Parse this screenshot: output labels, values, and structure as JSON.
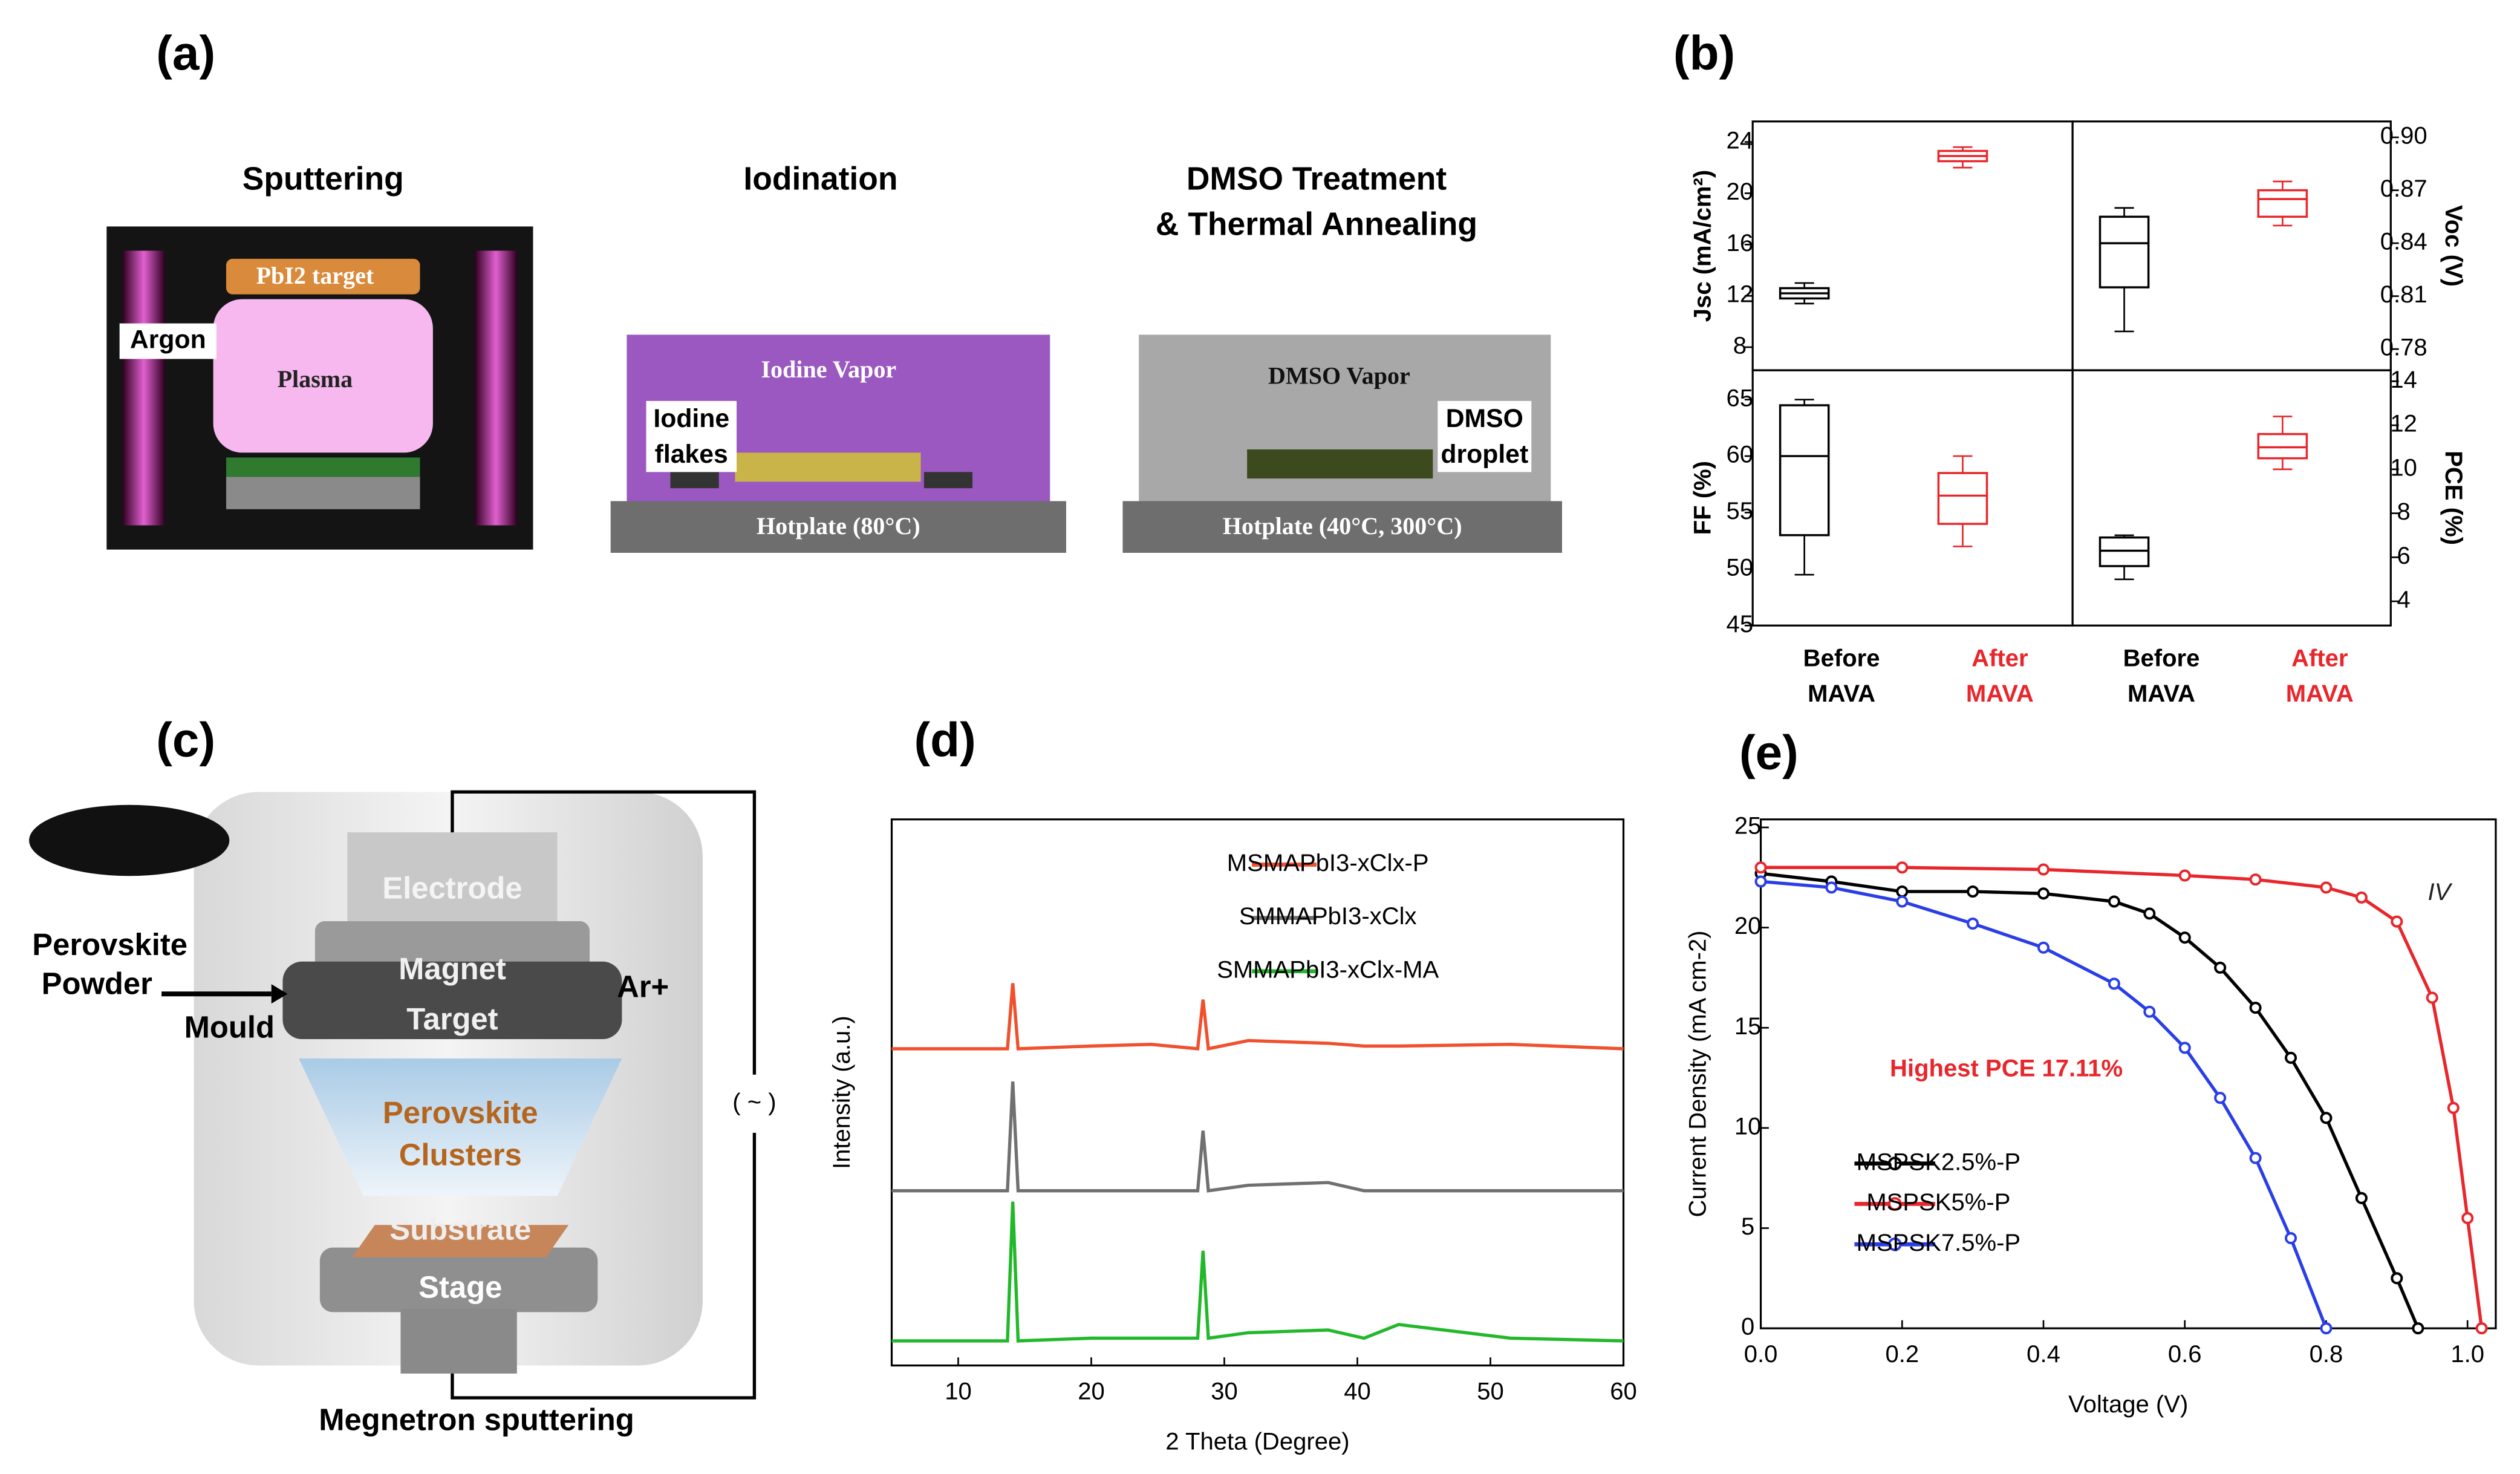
{
  "panel_labels": [
    "(a)",
    "(b)",
    "(c)",
    "(d)",
    "(e)"
  ],
  "panel_a": {
    "titles": [
      "Sputtering",
      "Iodination",
      "DMSO Treatment",
      "& Thermal Annealing"
    ],
    "sputtering": {
      "target": "PbI2 target",
      "gas": "Argon",
      "plasma": "Plasma"
    },
    "iodination": {
      "vapor": "Iodine Vapor",
      "source": [
        "Iodine",
        "flakes"
      ],
      "hotplate": "Hotplate (80°C)"
    },
    "dmso": {
      "vapor": "DMSO Vapor",
      "source": [
        "DMSO",
        "droplet"
      ],
      "hotplate": "Hotplate (40°C, 300°C)"
    }
  },
  "panel_c": {
    "powder": [
      "Perovskite",
      "Powder"
    ],
    "mould": "Mould",
    "electrode": "Electrode",
    "magnet": "Magnet",
    "target": "Target",
    "ion": "Ar+",
    "clusters": [
      "Perovskite",
      "Clusters"
    ],
    "substrate": "Substrate",
    "stage": "Stage",
    "source": "( ~ )",
    "caption": "Megnetron sputtering"
  },
  "chart_data": [
    {
      "type": "box",
      "categories": [
        "Before MAVA",
        "After MAVA"
      ],
      "colors": [
        "#000000",
        "#e8262b"
      ],
      "subplots": [
        {
          "ylabel": "Jsc (mA/cm²)",
          "y_axis_side": "left",
          "ylim": [
            6.2,
            25.6
          ],
          "yticks": [
            8,
            12,
            16,
            20,
            24
          ],
          "boxes": [
            {
              "min": 11.4,
              "q1": 11.8,
              "median": 12.2,
              "q3": 12.6,
              "max": 13.0
            },
            {
              "min": 22.0,
              "q1": 22.5,
              "median": 22.9,
              "q3": 23.3,
              "max": 23.6
            }
          ]
        },
        {
          "ylabel": "Voc (V)",
          "y_axis_side": "right",
          "ylim": [
            0.768,
            0.909
          ],
          "yticks": [
            0.78,
            0.81,
            0.84,
            0.87,
            {
              "value": 0.9,
              "label": "0.90"
            }
          ],
          "boxes": [
            {
              "min": 0.79,
              "q1": 0.815,
              "median": 0.84,
              "q3": 0.855,
              "max": 0.86
            },
            {
              "min": 0.85,
              "q1": 0.855,
              "median": 0.865,
              "q3": 0.87,
              "max": 0.875
            }
          ]
        },
        {
          "ylabel": "FF (%)",
          "y_axis_side": "left",
          "ylim": [
            45,
            67.6
          ],
          "yticks": [
            45,
            50,
            55,
            60,
            65
          ],
          "boxes": [
            {
              "min": 49.5,
              "q1": 53,
              "median": 60,
              "q3": 64.5,
              "max": 65
            },
            {
              "min": 52,
              "q1": 54,
              "median": 56.5,
              "q3": 58.5,
              "max": 60
            }
          ]
        },
        {
          "ylabel": "PCE (%)",
          "y_axis_side": "right",
          "ylim": [
            2.9,
            14.5
          ],
          "yticks": [
            4,
            6,
            8,
            10,
            12,
            14
          ],
          "boxes": [
            {
              "min": 5,
              "q1": 5.6,
              "median": 6.3,
              "q3": 6.9,
              "max": 7
            },
            {
              "min": 10,
              "q1": 10.5,
              "median": 11,
              "q3": 11.6,
              "max": 12.4
            }
          ]
        }
      ]
    },
    {
      "type": "line",
      "xlabel": "2 Theta (Degree)",
      "ylabel": "Intensity (a.u.)",
      "xlim": [
        5,
        60
      ],
      "ylim": [
        0,
        100
      ],
      "xticks": [
        10,
        20,
        30,
        40,
        50,
        60
      ],
      "x": [
        5,
        13.7,
        14.1,
        14.5,
        20,
        24.5,
        28,
        28.4,
        28.8,
        31.8,
        37.8,
        40.5,
        43.1,
        51.5,
        60
      ],
      "series": [
        {
          "name": "MSMAPbI3-xClx-P",
          "color": "#f0502d",
          "values": [
            58,
            58,
            70,
            58,
            58.5,
            58.8,
            58,
            67,
            58,
            59.5,
            59,
            58.5,
            58.5,
            58.8,
            58
          ]
        },
        {
          "name": "SMMAPbI3-xClx",
          "color": "#707070",
          "values": [
            32,
            32,
            52,
            32,
            32,
            32,
            32,
            43,
            32,
            33,
            33.5,
            32,
            32,
            32,
            32
          ]
        },
        {
          "name": "SMMAPbI3-xClx-MA",
          "color": "#22b82a",
          "values": [
            4.5,
            4.5,
            30,
            4.5,
            5,
            5,
            5,
            21,
            5,
            6,
            6.5,
            5,
            7.5,
            5,
            4.5
          ]
        }
      ]
    },
    {
      "type": "line",
      "xlabel": "Voltage (V)",
      "ylabel": "Current Density (mA cm-2)",
      "xlim": [
        0,
        1.04
      ],
      "ylim": [
        0,
        25.4
      ],
      "xticks": [
        {
          "value": 0,
          "label": "0.0"
        },
        0.2,
        0.4,
        0.6,
        0.8,
        {
          "value": 1,
          "label": "1.0"
        }
      ],
      "yticks": [
        0,
        5,
        10,
        15,
        20,
        25
      ],
      "markers": true,
      "annotations": [
        {
          "text": "Highest PCE 17.11%",
          "color": "#e8262b"
        },
        {
          "text": "IV",
          "color": "#222222"
        }
      ],
      "series": [
        {
          "name": "MSPSK2.5%-P",
          "color": "#000000",
          "x": [
            0,
            0.1,
            0.2,
            0.3,
            0.4,
            0.5,
            0.55,
            0.6,
            0.65,
            0.7,
            0.75,
            0.8,
            0.85,
            0.9,
            0.93
          ],
          "values": [
            22.7,
            22.3,
            21.8,
            21.8,
            21.7,
            21.3,
            20.7,
            19.5,
            18,
            16,
            13.5,
            10.5,
            6.5,
            2.5,
            0
          ]
        },
        {
          "name": "MSPSK5%-P",
          "color": "#e8262b",
          "x": [
            0,
            0.2,
            0.4,
            0.6,
            0.7,
            0.8,
            0.85,
            0.9,
            0.95,
            0.98,
            1.0,
            1.02
          ],
          "values": [
            23,
            23,
            22.9,
            22.6,
            22.4,
            22,
            21.5,
            20.3,
            16.5,
            11,
            5.5,
            0
          ]
        },
        {
          "name": "MSPSK7.5%-P",
          "color": "#2a3ee8",
          "x": [
            0,
            0.1,
            0.2,
            0.3,
            0.4,
            0.5,
            0.55,
            0.6,
            0.65,
            0.7,
            0.75,
            0.8
          ],
          "values": [
            22.3,
            22,
            21.3,
            20.2,
            19,
            17.2,
            15.8,
            14,
            11.5,
            8.5,
            4.5,
            0
          ]
        }
      ]
    }
  ]
}
